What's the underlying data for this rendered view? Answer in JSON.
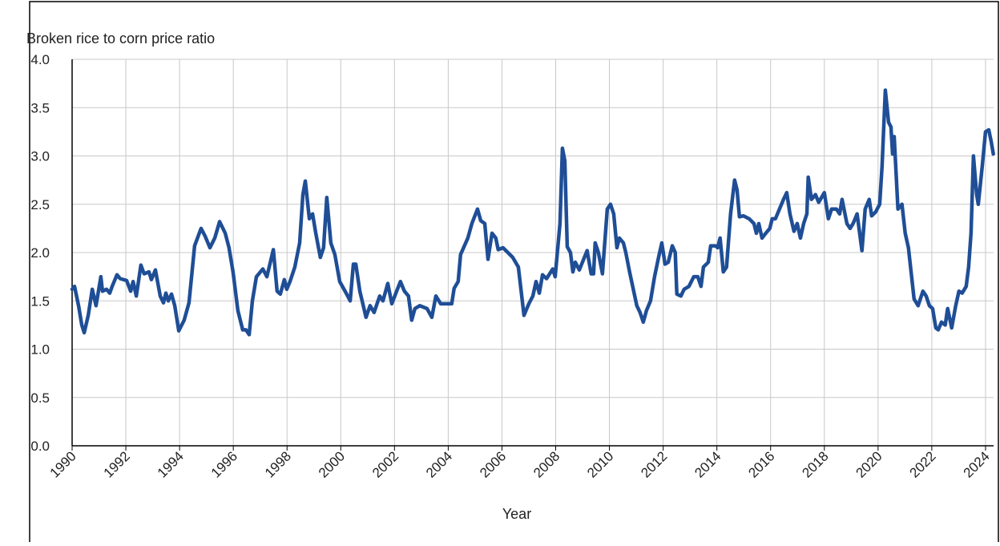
{
  "chart_data": {
    "type": "line",
    "y_label": "Broken rice to corn price ratio",
    "x_label": "Year",
    "xlim": [
      1990,
      2024.3
    ],
    "ylim": [
      0,
      4
    ],
    "xticks": [
      1990,
      1992,
      1994,
      1996,
      1998,
      2000,
      2002,
      2004,
      2006,
      2008,
      2010,
      2012,
      2014,
      2016,
      2018,
      2020,
      2022,
      2024
    ],
    "yticks": [
      {
        "value": 0,
        "label": "0.0"
      },
      0.5,
      {
        "value": 1,
        "label": "1.0"
      },
      1.5,
      {
        "value": 2,
        "label": "2.0"
      },
      2.5,
      {
        "value": 3,
        "label": "3.0"
      },
      3.5,
      {
        "value": 4,
        "label": "4.0"
      }
    ],
    "grid": true,
    "series": [
      {
        "name": "Broken rice to corn price ratio",
        "color": "#1f4e96",
        "x": [
          1990,
          1990.09,
          1990.24,
          1990.36,
          1990.45,
          1990.6,
          1990.75,
          1990.89,
          1991.07,
          1991.13,
          1991.28,
          1991.4,
          1991.49,
          1991.67,
          1991.79,
          1992.03,
          1992.18,
          1992.27,
          1992.39,
          1992.56,
          1992.68,
          1992.86,
          1992.95,
          1993.1,
          1993.28,
          1993.4,
          1993.49,
          1993.58,
          1993.7,
          1993.82,
          1993.97,
          1994.17,
          1994.35,
          1994.56,
          1994.8,
          1994.95,
          1995.13,
          1995.31,
          1995.49,
          1995.7,
          1995.84,
          1995.99,
          1996.17,
          1996.35,
          1996.47,
          1996.59,
          1996.71,
          1996.86,
          1997.1,
          1997.25,
          1997.49,
          1997.63,
          1997.75,
          1997.9,
          1997.99,
          1998.11,
          1998.29,
          1998.47,
          1998.59,
          1998.68,
          1998.83,
          1998.95,
          1999.07,
          1999.24,
          1999.36,
          1999.48,
          1999.63,
          1999.78,
          1999.96,
          2000.2,
          2000.35,
          2000.47,
          2000.56,
          2000.71,
          2000.94,
          2001.09,
          2001.24,
          2001.45,
          2001.57,
          2001.75,
          2001.9,
          2002.08,
          2002.22,
          2002.37,
          2002.52,
          2002.64,
          2002.76,
          2002.94,
          2003.21,
          2003.39,
          2003.54,
          2003.72,
          2003.96,
          2004.13,
          2004.22,
          2004.37,
          2004.46,
          2004.73,
          2004.88,
          2005.09,
          2005.21,
          2005.36,
          2005.48,
          2005.63,
          2005.77,
          2005.86,
          2006.04,
          2006.22,
          2006.4,
          2006.61,
          2006.82,
          2007,
          2007.15,
          2007.27,
          2007.39,
          2007.51,
          2007.66,
          2007.89,
          2007.98,
          2008.16,
          2008.25,
          2008.34,
          2008.43,
          2008.55,
          2008.64,
          2008.73,
          2008.88,
          2009.17,
          2009.32,
          2009.41,
          2009.47,
          2009.59,
          2009.74,
          2009.92,
          2010.04,
          2010.16,
          2010.28,
          2010.37,
          2010.52,
          2010.61,
          2010.75,
          2011.02,
          2011.14,
          2011.26,
          2011.38,
          2011.53,
          2011.68,
          2011.83,
          2011.95,
          2012.07,
          2012.19,
          2012.34,
          2012.45,
          2012.51,
          2012.66,
          2012.78,
          2012.96,
          2013.14,
          2013.29,
          2013.41,
          2013.5,
          2013.68,
          2013.77,
          2013.95,
          2014.03,
          2014.12,
          2014.24,
          2014.36,
          2014.51,
          2014.66,
          2014.75,
          2014.84,
          2014.99,
          2015.2,
          2015.38,
          2015.47,
          2015.56,
          2015.68,
          2015.82,
          2015.97,
          2016.06,
          2016.18,
          2016.33,
          2016.48,
          2016.6,
          2016.72,
          2016.87,
          2016.99,
          2017.11,
          2017.23,
          2017.35,
          2017.4,
          2017.52,
          2017.67,
          2017.79,
          2018,
          2018.15,
          2018.27,
          2018.45,
          2018.57,
          2018.66,
          2018.84,
          2018.96,
          2019.07,
          2019.22,
          2019.4,
          2019.52,
          2019.67,
          2019.76,
          2019.91,
          2020.06,
          2020.15,
          2020.27,
          2020.39,
          2020.48,
          2020.54,
          2020.6,
          2020.74,
          2020.89,
          2021.01,
          2021.13,
          2021.34,
          2021.49,
          2021.67,
          2021.79,
          2021.91,
          2022.03,
          2022.15,
          2022.24,
          2022.36,
          2022.5,
          2022.59,
          2022.74,
          2022.89,
          2023.01,
          2023.13,
          2023.28,
          2023.37,
          2023.46,
          2023.55,
          2023.67,
          2023.73,
          2023.88,
          2024,
          2024.12,
          2024.21,
          2024.29
        ],
        "values": [
          1.62,
          1.65,
          1.45,
          1.25,
          1.17,
          1.35,
          1.62,
          1.45,
          1.75,
          1.6,
          1.62,
          1.58,
          1.65,
          1.77,
          1.73,
          1.71,
          1.6,
          1.7,
          1.55,
          1.87,
          1.78,
          1.8,
          1.72,
          1.82,
          1.55,
          1.48,
          1.58,
          1.5,
          1.57,
          1.45,
          1.19,
          1.3,
          1.48,
          2.07,
          2.25,
          2.17,
          2.05,
          2.15,
          2.32,
          2.2,
          2.05,
          1.8,
          1.4,
          1.2,
          1.2,
          1.15,
          1.5,
          1.75,
          1.83,
          1.75,
          2.03,
          1.6,
          1.57,
          1.72,
          1.62,
          1.7,
          1.85,
          2.1,
          2.6,
          2.74,
          2.35,
          2.4,
          2.2,
          1.95,
          2.05,
          2.57,
          2.1,
          1.98,
          1.7,
          1.58,
          1.5,
          1.88,
          1.88,
          1.6,
          1.33,
          1.45,
          1.38,
          1.55,
          1.5,
          1.68,
          1.47,
          1.6,
          1.7,
          1.6,
          1.55,
          1.3,
          1.42,
          1.45,
          1.42,
          1.33,
          1.55,
          1.47,
          1.47,
          1.47,
          1.63,
          1.7,
          1.98,
          2.15,
          2.3,
          2.45,
          2.33,
          2.3,
          1.93,
          2.2,
          2.15,
          2.03,
          2.05,
          2.0,
          1.95,
          1.85,
          1.35,
          1.47,
          1.55,
          1.7,
          1.58,
          1.77,
          1.73,
          1.83,
          1.75,
          2.3,
          3.08,
          2.95,
          2.06,
          2.0,
          1.8,
          1.9,
          1.82,
          2.02,
          1.78,
          1.78,
          2.1,
          2.0,
          1.78,
          2.45,
          2.5,
          2.4,
          2.05,
          2.15,
          2.1,
          2.0,
          1.8,
          1.45,
          1.38,
          1.28,
          1.4,
          1.5,
          1.75,
          1.95,
          2.1,
          1.88,
          1.9,
          2.07,
          2.0,
          1.57,
          1.55,
          1.62,
          1.65,
          1.75,
          1.75,
          1.65,
          1.85,
          1.9,
          2.07,
          2.07,
          2.05,
          2.15,
          1.8,
          1.85,
          2.4,
          2.75,
          2.65,
          2.37,
          2.38,
          2.35,
          2.3,
          2.2,
          2.3,
          2.15,
          2.2,
          2.25,
          2.35,
          2.35,
          2.45,
          2.55,
          2.62,
          2.4,
          2.22,
          2.3,
          2.15,
          2.3,
          2.4,
          2.78,
          2.55,
          2.6,
          2.52,
          2.62,
          2.35,
          2.45,
          2.45,
          2.4,
          2.55,
          2.3,
          2.25,
          2.3,
          2.4,
          2.02,
          2.45,
          2.55,
          2.38,
          2.42,
          2.5,
          2.9,
          3.68,
          3.35,
          3.3,
          3.02,
          3.2,
          2.45,
          2.5,
          2.2,
          2.05,
          1.52,
          1.45,
          1.6,
          1.55,
          1.45,
          1.42,
          1.22,
          1.2,
          1.28,
          1.25,
          1.42,
          1.22,
          1.45,
          1.6,
          1.58,
          1.65,
          1.85,
          2.2,
          3.0,
          2.6,
          2.5,
          2.9,
          3.25,
          3.27,
          3.15,
          3.02
        ]
      }
    ]
  }
}
